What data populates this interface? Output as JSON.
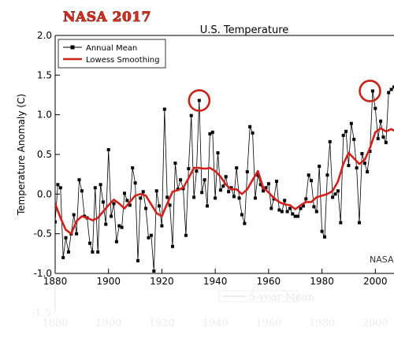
{
  "badge": "NASA 2017",
  "watermark": "NASA",
  "ghost": {
    "legend_label": "5-year Mean",
    "y_tick": "-1.5",
    "x_ticks": [
      "1880",
      "1900",
      "1920",
      "1940",
      "1960",
      "1980",
      "2000"
    ]
  },
  "colors": {
    "annual": "#000000",
    "smoothing": "#d0211c",
    "highlight": "#c8231b"
  },
  "chart_data": {
    "type": "line",
    "title": "U.S. Temperature",
    "xlabel": "",
    "ylabel": "Temperature Anomaly (C)",
    "xlim": [
      1880,
      2007
    ],
    "ylim": [
      -1.0,
      2.0
    ],
    "x_ticks": [
      1880,
      1900,
      1920,
      1940,
      1960,
      1980,
      2000
    ],
    "x_tick_labels": [
      "1880",
      "1900",
      "1920",
      "1940",
      "1960",
      "1980",
      "2000"
    ],
    "y_ticks": [
      -1.0,
      -0.5,
      0.0,
      0.5,
      1.0,
      1.5,
      2.0
    ],
    "y_tick_labels": [
      "-1.0",
      "-0.5",
      "0.0",
      "0.5",
      "1.0",
      "1.5",
      "2.0"
    ],
    "grid": false,
    "legend_position": "top-left",
    "series": [
      {
        "name": "Annual Mean",
        "style": "line-markers",
        "x": [
          1880,
          1881,
          1882,
          1883,
          1884,
          1885,
          1886,
          1887,
          1888,
          1889,
          1890,
          1891,
          1892,
          1893,
          1894,
          1895,
          1896,
          1897,
          1898,
          1899,
          1900,
          1901,
          1902,
          1903,
          1904,
          1905,
          1906,
          1907,
          1908,
          1909,
          1910,
          1911,
          1912,
          1913,
          1914,
          1915,
          1916,
          1917,
          1918,
          1919,
          1920,
          1921,
          1922,
          1923,
          1924,
          1925,
          1926,
          1927,
          1928,
          1929,
          1930,
          1931,
          1932,
          1933,
          1934,
          1935,
          1936,
          1937,
          1938,
          1939,
          1940,
          1941,
          1942,
          1943,
          1944,
          1945,
          1946,
          1947,
          1948,
          1949,
          1950,
          1951,
          1952,
          1953,
          1954,
          1955,
          1956,
          1957,
          1958,
          1959,
          1960,
          1961,
          1962,
          1963,
          1964,
          1965,
          1966,
          1967,
          1968,
          1969,
          1970,
          1971,
          1972,
          1973,
          1974,
          1975,
          1976,
          1977,
          1978,
          1979,
          1980,
          1981,
          1982,
          1983,
          1984,
          1985,
          1986,
          1987,
          1988,
          1989,
          1990,
          1991,
          1992,
          1993,
          1994,
          1995,
          1996,
          1997,
          1998,
          1999,
          2000,
          2001,
          2002,
          2003,
          2004,
          2005,
          2006,
          2007
        ],
        "values": [
          -0.35,
          0.12,
          0.08,
          -0.8,
          -0.55,
          -0.73,
          -0.5,
          -0.26,
          -0.5,
          0.18,
          0.04,
          -0.28,
          -0.3,
          -0.62,
          -0.73,
          0.08,
          -0.73,
          0.12,
          -0.1,
          -0.38,
          0.56,
          -0.28,
          -0.12,
          -0.6,
          -0.4,
          -0.42,
          0.01,
          -0.08,
          -0.14,
          0.33,
          0.14,
          -0.84,
          -0.05,
          0.03,
          -0.18,
          -0.55,
          -0.52,
          -0.97,
          0.04,
          -0.15,
          -0.4,
          1.07,
          -0.04,
          -0.14,
          -0.66,
          0.39,
          0.06,
          0.18,
          0.07,
          -0.52,
          0.32,
          0.99,
          -0.04,
          0.29,
          1.18,
          0.02,
          0.18,
          -0.15,
          0.76,
          0.78,
          -0.05,
          0.52,
          0.05,
          0.1,
          0.22,
          0.03,
          0.08,
          -0.03,
          0.33,
          -0.05,
          -0.26,
          -0.37,
          0.28,
          0.85,
          0.77,
          -0.05,
          0.24,
          0.12,
          0.04,
          0.08,
          0.13,
          -0.18,
          -0.06,
          0.16,
          -0.2,
          -0.22,
          -0.08,
          -0.22,
          -0.18,
          -0.25,
          -0.28,
          -0.28,
          -0.18,
          -0.15,
          -0.06,
          0.24,
          0.17,
          -0.16,
          -0.22,
          0.35,
          -0.47,
          -0.54,
          0.24,
          0.66,
          -0.04,
          0.0,
          0.04,
          -0.36,
          0.74,
          0.79,
          0.36,
          0.89,
          0.69,
          0.33,
          -0.36,
          0.51,
          0.39,
          0.28,
          0.54,
          1.3,
          1.08,
          0.7,
          0.92,
          0.72,
          0.65,
          1.28,
          1.32,
          1.35
        ]
      },
      {
        "name": "Lowess Smoothing",
        "style": "line",
        "x": [
          1880,
          1882,
          1884,
          1886,
          1888,
          1890,
          1892,
          1894,
          1896,
          1898,
          1900,
          1902,
          1904,
          1906,
          1908,
          1910,
          1912,
          1914,
          1916,
          1918,
          1920,
          1922,
          1924,
          1926,
          1928,
          1930,
          1932,
          1934,
          1936,
          1938,
          1940,
          1942,
          1944,
          1946,
          1948,
          1950,
          1952,
          1954,
          1956,
          1958,
          1960,
          1962,
          1964,
          1966,
          1968,
          1970,
          1972,
          1974,
          1976,
          1978,
          1980,
          1982,
          1984,
          1986,
          1988,
          1990,
          1992,
          1994,
          1996,
          1998,
          2000,
          2002,
          2004,
          2006,
          2007
        ],
        "values": [
          -0.12,
          -0.3,
          -0.45,
          -0.5,
          -0.34,
          -0.28,
          -0.3,
          -0.33,
          -0.3,
          -0.22,
          -0.14,
          -0.07,
          -0.12,
          -0.18,
          -0.1,
          -0.02,
          0.0,
          -0.02,
          -0.13,
          -0.24,
          -0.28,
          -0.12,
          0.03,
          0.05,
          0.08,
          0.2,
          0.33,
          0.33,
          0.32,
          0.33,
          0.29,
          0.22,
          0.12,
          0.06,
          0.06,
          0.0,
          0.06,
          0.18,
          0.29,
          0.08,
          0.02,
          -0.05,
          -0.1,
          -0.13,
          -0.14,
          -0.19,
          -0.14,
          -0.1,
          -0.1,
          -0.04,
          -0.02,
          0.0,
          0.04,
          0.16,
          0.38,
          0.52,
          0.45,
          0.38,
          0.43,
          0.58,
          0.78,
          0.83,
          0.79,
          0.82,
          0.8
        ]
      }
    ],
    "annotations": [
      {
        "type": "circle",
        "x": 1934,
        "y": 1.18
      },
      {
        "type": "circle",
        "x": 1998,
        "y": 1.3
      }
    ]
  }
}
